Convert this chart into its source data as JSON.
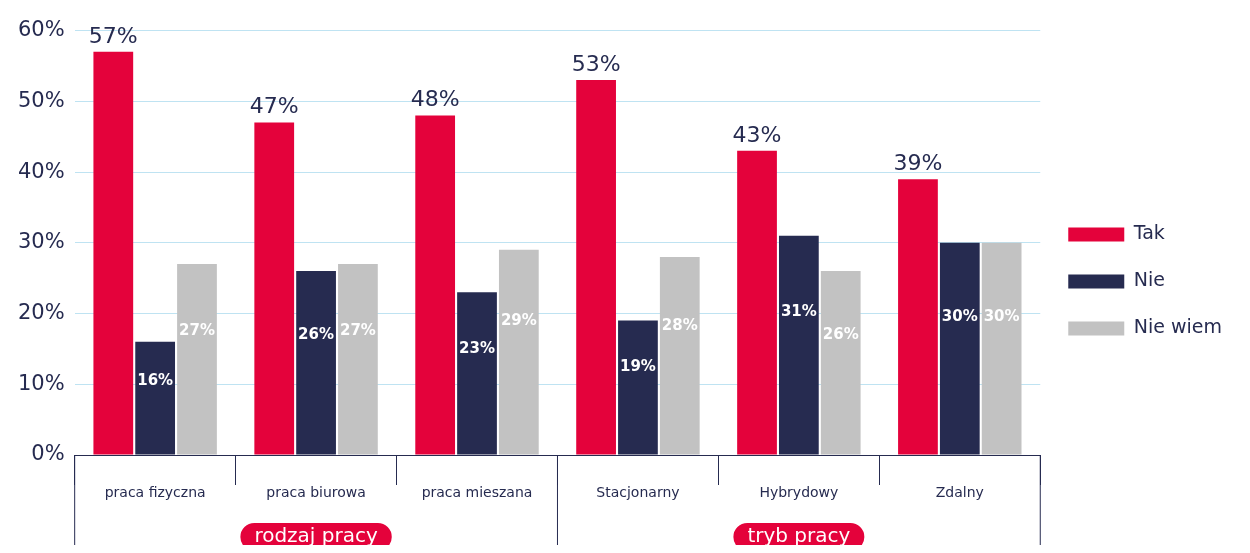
{
  "chart_data": {
    "type": "bar",
    "categories": [
      "praca fizyczna",
      "praca biurowa",
      "praca mieszana",
      "Stacjonarny",
      "Hybrydowy",
      "Zdalny"
    ],
    "series": [
      {
        "name": "Tak",
        "color": "#e4023b",
        "values": [
          57,
          47,
          48,
          53,
          43,
          39
        ],
        "value_labels": [
          "57%",
          "47%",
          "48%",
          "53%",
          "43%",
          "39%"
        ]
      },
      {
        "name": "Nie",
        "color": "#262b50",
        "values": [
          16,
          26,
          23,
          19,
          31,
          30
        ],
        "value_labels": [
          "16%",
          "26%",
          "23%",
          "19%",
          "31%",
          "30%"
        ]
      },
      {
        "name": "Nie wiem",
        "color": "#c2c2c2",
        "values": [
          27,
          27,
          29,
          28,
          26,
          30
        ],
        "value_labels": [
          "27%",
          "27%",
          "29%",
          "28%",
          "26%",
          "30%"
        ]
      }
    ],
    "ylim": [
      0,
      60
    ],
    "yticks": [
      {
        "value": 0,
        "label": "0%"
      },
      {
        "value": 10,
        "label": "10%"
      },
      {
        "value": 20,
        "label": "20%"
      },
      {
        "value": 30,
        "label": "30%"
      },
      {
        "value": 40,
        "label": "40%"
      },
      {
        "value": 50,
        "label": "50%"
      },
      {
        "value": 60,
        "label": "60%"
      }
    ],
    "grid": "y",
    "legend": "right",
    "annotations": [
      "rodzaj pracy",
      "tryb pracy"
    ]
  }
}
